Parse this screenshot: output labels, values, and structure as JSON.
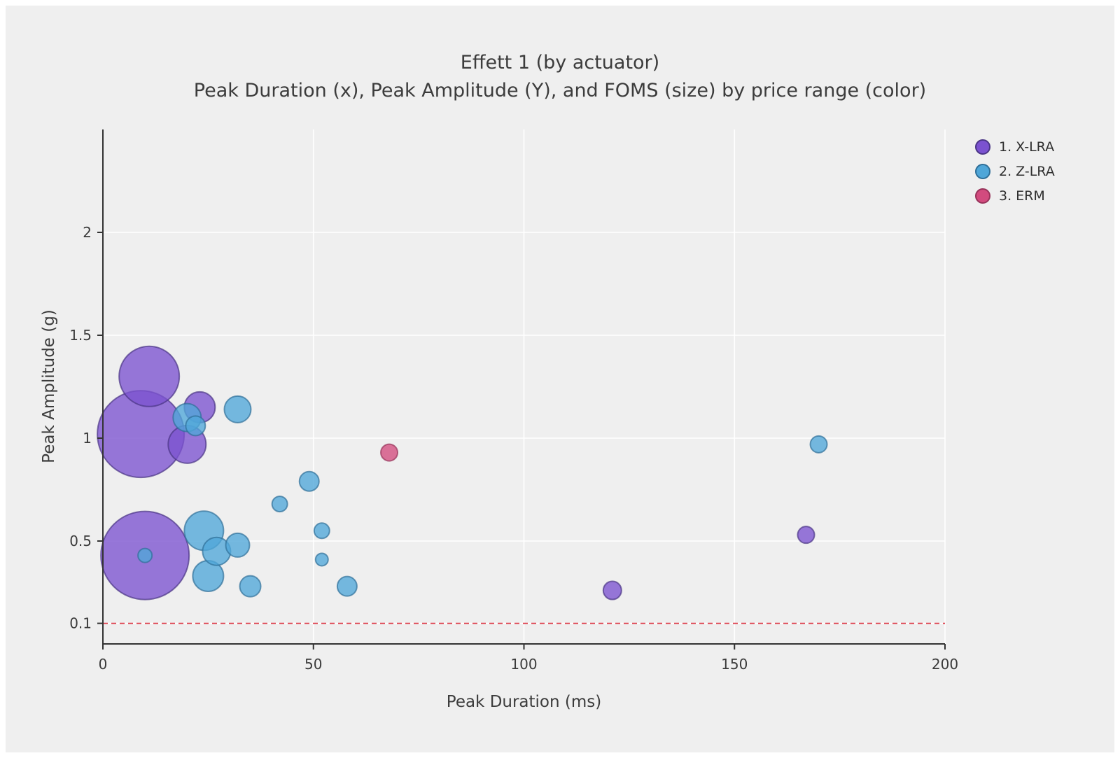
{
  "chart_data": {
    "type": "scatter",
    "title": "Effett 1 (by actuator)",
    "subtitle": "Peak Duration (x), Peak Amplitude (Y), and FOMS (size) by price range (color)",
    "xlabel": "Peak Duration (ms)",
    "ylabel": "Peak Amplitude (g)",
    "xlim": [
      0,
      200
    ],
    "ylim": [
      0,
      2.5
    ],
    "x_ticks": [
      0,
      50,
      100,
      150,
      200
    ],
    "y_ticks": [
      0.1,
      0.5,
      1,
      1.5,
      2
    ],
    "grid": true,
    "grid_color": "#ffffff",
    "background_color": "#efefef",
    "axis_color": "#333333",
    "legend_position": "top-right",
    "size_encoding": "FOMS",
    "reference_line": {
      "y": 0.1,
      "style": "dashed",
      "color": "#dd3c4a"
    },
    "series": [
      {
        "name": "1. X-LRA",
        "color": "#7b52d0",
        "stroke": "#4a3585",
        "points": [
          {
            "x": 11,
            "y": 1.3,
            "r": 43
          },
          {
            "x": 9,
            "y": 1.02,
            "r": 62
          },
          {
            "x": 23,
            "y": 1.15,
            "r": 22
          },
          {
            "x": 20,
            "y": 0.97,
            "r": 27
          },
          {
            "x": 10,
            "y": 0.43,
            "r": 63
          },
          {
            "x": 121,
            "y": 0.26,
            "r": 13
          },
          {
            "x": 167,
            "y": 0.53,
            "r": 12
          }
        ]
      },
      {
        "name": "2. Z-LRA",
        "color": "#4fa6d8",
        "stroke": "#2f6f98",
        "points": [
          {
            "x": 20,
            "y": 1.1,
            "r": 20
          },
          {
            "x": 22,
            "y": 1.06,
            "r": 14
          },
          {
            "x": 32,
            "y": 1.14,
            "r": 19
          },
          {
            "x": 24,
            "y": 0.55,
            "r": 28
          },
          {
            "x": 27,
            "y": 0.45,
            "r": 20
          },
          {
            "x": 25,
            "y": 0.33,
            "r": 22
          },
          {
            "x": 32,
            "y": 0.48,
            "r": 17
          },
          {
            "x": 35,
            "y": 0.28,
            "r": 15
          },
          {
            "x": 42,
            "y": 0.68,
            "r": 11
          },
          {
            "x": 49,
            "y": 0.79,
            "r": 14
          },
          {
            "x": 52,
            "y": 0.55,
            "r": 11
          },
          {
            "x": 52,
            "y": 0.41,
            "r": 9
          },
          {
            "x": 58,
            "y": 0.28,
            "r": 14
          },
          {
            "x": 10,
            "y": 0.43,
            "r": 10
          },
          {
            "x": 170,
            "y": 0.97,
            "r": 12
          }
        ]
      },
      {
        "name": "3. ERM",
        "color": "#d24b7e",
        "stroke": "#97335a",
        "points": [
          {
            "x": 68,
            "y": 0.93,
            "r": 12
          }
        ]
      }
    ]
  }
}
